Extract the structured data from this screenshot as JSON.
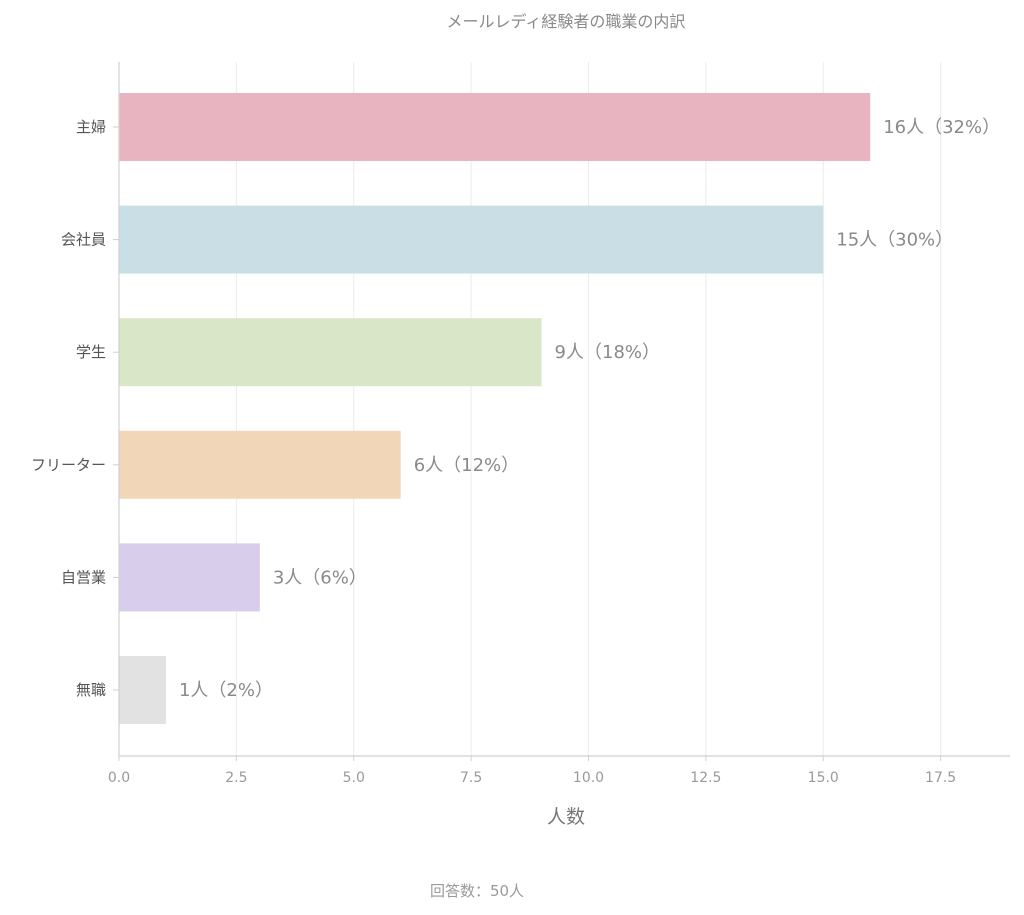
{
  "chart_data": {
    "type": "bar",
    "orientation": "horizontal",
    "title": "メールレディ経験者の職業の内訳",
    "xlabel": "人数",
    "ylabel": "",
    "xlim": [
      0,
      19
    ],
    "x_ticks": [
      "0.0",
      "2.5",
      "5.0",
      "7.5",
      "10.0",
      "12.5",
      "15.0",
      "17.5"
    ],
    "grid": "vertical",
    "legend": "none",
    "categories": [
      "主婦",
      "会社員",
      "学生",
      "フリーター",
      "自営業",
      "無職"
    ],
    "values": [
      16,
      15,
      9,
      6,
      3,
      1
    ],
    "data_labels": [
      "16人（32%）",
      "15人（30%）",
      "9人（18%）",
      "6人（12%）",
      "3人（6%）",
      "1人（2%）"
    ],
    "colors": [
      "#e8b4c0",
      "#c9dee5",
      "#d9e6c7",
      "#f2d6b8",
      "#d9cdec",
      "#e2e2e2"
    ],
    "footnote": "回答数：50人"
  }
}
